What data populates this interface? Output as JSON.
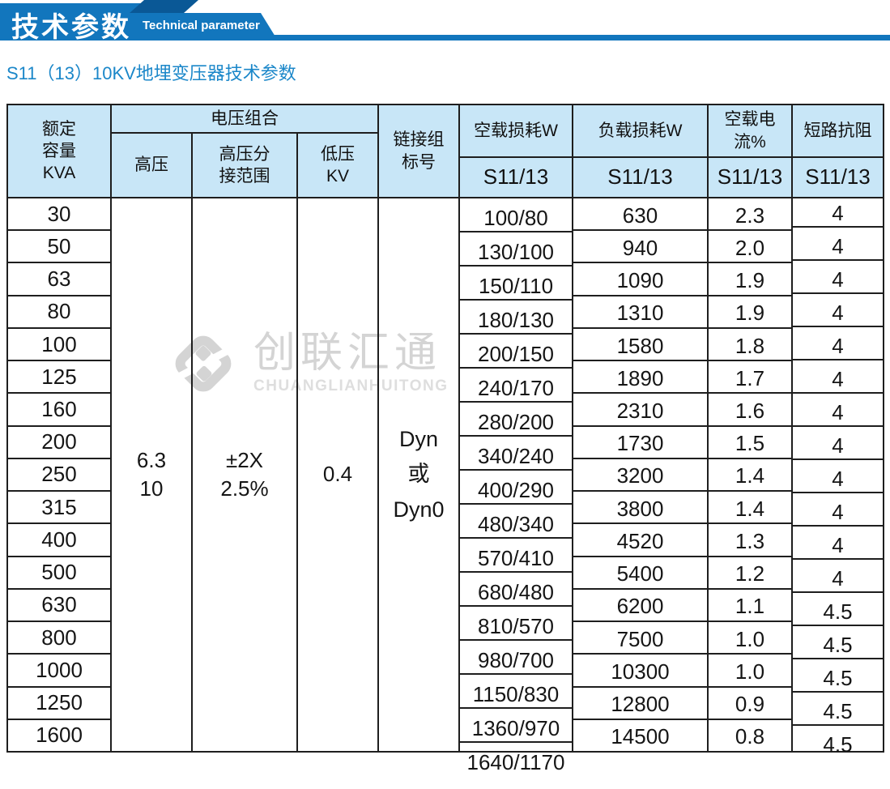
{
  "banner": {
    "title_cn": "技术参数",
    "title_en": "Technical parameter"
  },
  "subtitle": "S11（13）10KV地埋变压器技术参数",
  "colors": {
    "banner_blue": "#1276bd",
    "banner_dark_blue": "#0a5896",
    "header_bg": "#c8e6f7",
    "subtitle_blue": "#1b87c9",
    "border": "#1e1e1e",
    "watermark_gray": "#d4d4d4"
  },
  "watermark": {
    "logo_icon": "diamond-logo-icon",
    "cn": "创联汇通",
    "en": "CHUANGLIANHUITONG"
  },
  "table": {
    "header": {
      "capacity": "额定\n容量\nKVA",
      "voltage_group": "电压组合",
      "hv": "高压",
      "hv_tap": "高压分\n接范围",
      "lv": "低压\nKV",
      "vector": "链接组\n标号",
      "no_load_loss": "空载损耗W",
      "load_loss": "负载损耗W",
      "no_load_current": "空载电流%",
      "impedance": "短路抗阻",
      "sub_label": "S11/13"
    },
    "merged": {
      "hv": "6.3\n10",
      "hv_tap": "±2X\n2.5%",
      "lv": "0.4",
      "vector": "Dyn\n或\nDyn0"
    },
    "rows": [
      {
        "capacity": "30",
        "no_load_loss": "100/80",
        "load_loss": "630",
        "no_load_current": "2.3",
        "impedance": "4"
      },
      {
        "capacity": "50",
        "no_load_loss": "130/100",
        "load_loss": "940",
        "no_load_current": "2.0",
        "impedance": "4"
      },
      {
        "capacity": "63",
        "no_load_loss": "150/110",
        "load_loss": "1090",
        "no_load_current": "1.9",
        "impedance": "4"
      },
      {
        "capacity": "80",
        "no_load_loss": "180/130",
        "load_loss": "1310",
        "no_load_current": "1.9",
        "impedance": "4"
      },
      {
        "capacity": "100",
        "no_load_loss": "200/150",
        "load_loss": "1580",
        "no_load_current": "1.8",
        "impedance": "4"
      },
      {
        "capacity": "125",
        "no_load_loss": "240/170",
        "load_loss": "1890",
        "no_load_current": "1.7",
        "impedance": "4"
      },
      {
        "capacity": "160",
        "no_load_loss": "280/200",
        "load_loss": "2310",
        "no_load_current": "1.6",
        "impedance": "4"
      },
      {
        "capacity": "200",
        "no_load_loss": "340/240",
        "load_loss": "1730",
        "no_load_current": "1.5",
        "impedance": "4"
      },
      {
        "capacity": "250",
        "no_load_loss": "400/290",
        "load_loss": "3200",
        "no_load_current": "1.4",
        "impedance": "4"
      },
      {
        "capacity": "315",
        "no_load_loss": "480/340",
        "load_loss": "3800",
        "no_load_current": "1.4",
        "impedance": "4"
      },
      {
        "capacity": "400",
        "no_load_loss": "570/410",
        "load_loss": "4520",
        "no_load_current": "1.3",
        "impedance": "4"
      },
      {
        "capacity": "500",
        "no_load_loss": "680/480",
        "load_loss": "5400",
        "no_load_current": "1.2",
        "impedance": "4"
      },
      {
        "capacity": "630",
        "no_load_loss": "810/570",
        "load_loss": "6200",
        "no_load_current": "1.1",
        "impedance": "4.5"
      },
      {
        "capacity": "800",
        "no_load_loss": "980/700",
        "load_loss": "7500",
        "no_load_current": "1.0",
        "impedance": "4.5"
      },
      {
        "capacity": "1000",
        "no_load_loss": "1150/830",
        "load_loss": "10300",
        "no_load_current": "1.0",
        "impedance": "4.5"
      },
      {
        "capacity": "1250",
        "no_load_loss": "1360/970",
        "load_loss": "12800",
        "no_load_current": "0.9",
        "impedance": "4.5"
      },
      {
        "capacity": "1600",
        "no_load_loss": "1640/1170",
        "load_loss": "14500",
        "no_load_current": "0.8",
        "impedance": "4.5"
      }
    ]
  }
}
